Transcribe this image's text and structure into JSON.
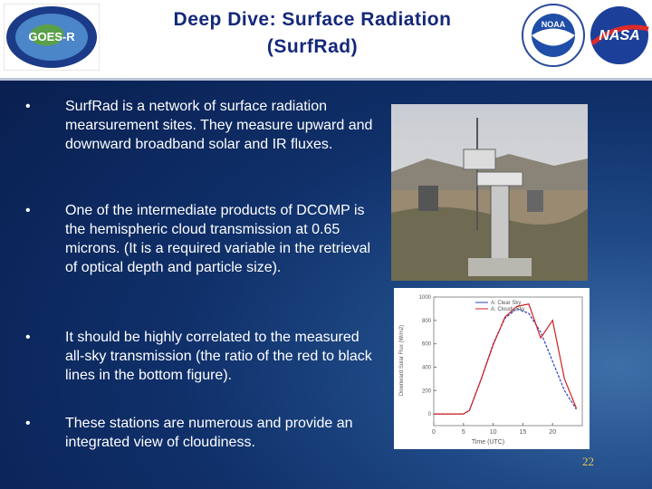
{
  "header": {
    "title": [
      "Deep Dive: Surface Radiation",
      "(SurfRad)"
    ],
    "logos": [
      "GOES-R",
      "NOAA",
      "NASA"
    ]
  },
  "bullets": [
    "SurfRad is a network of surface radiation mearsurement sites.  They measure upward and downward broadband solar and IR fluxes.",
    "One of the intermediate products of DCOMP is the hemispheric cloud transmission at 0.65 microns.  (It is a required variable in the retrieval of optical depth and particle size).",
    "It should be highly correlated to the measured all-sky transmission (the ratio of the red to black lines in the bottom figure).",
    "These stations are numerous and provide an integrated view of cloudiness."
  ],
  "page_number": 22,
  "chart_data": {
    "type": "line",
    "x_label": "Time (UTC)",
    "y_label": "Downward Solar Flux (W/m2)",
    "x": [
      0,
      5,
      6,
      8,
      10,
      12,
      14,
      16,
      18,
      20,
      22,
      24
    ],
    "series": [
      {
        "name": "A: Clear Sky",
        "color": "#3040c0",
        "values": [
          0,
          0,
          30,
          300,
          600,
          820,
          900,
          860,
          700,
          450,
          200,
          40
        ]
      },
      {
        "name": "A: Cloudy Sky",
        "color": "#d02020",
        "values": [
          0,
          0,
          30,
          300,
          590,
          830,
          920,
          940,
          650,
          800,
          300,
          50
        ]
      }
    ],
    "xlim": [
      0,
      25
    ],
    "xticks": [
      0,
      5,
      10,
      15,
      20
    ],
    "ylim": [
      -100,
      1000
    ],
    "yticks": [
      0,
      200,
      400,
      600,
      800,
      1000
    ]
  }
}
